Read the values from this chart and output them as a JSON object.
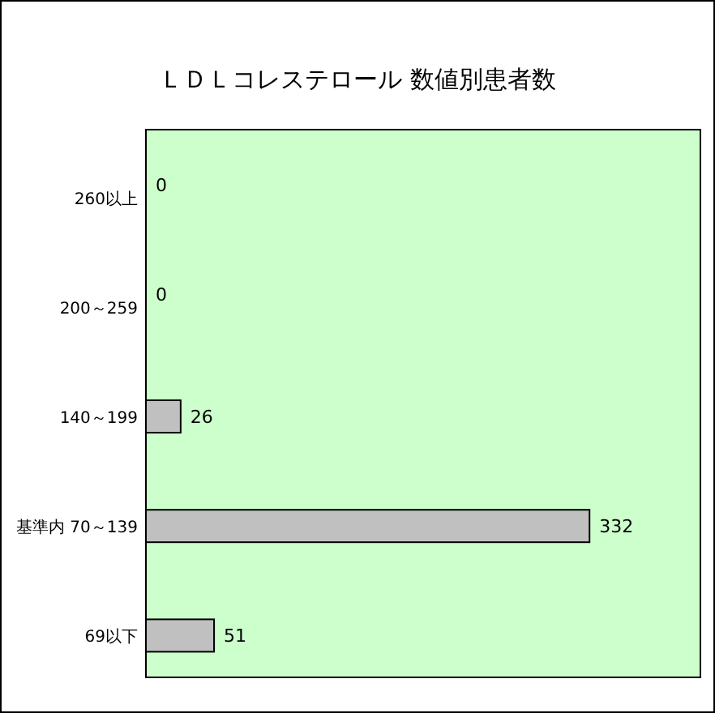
{
  "chart_data": {
    "type": "bar",
    "orientation": "horizontal",
    "title": "ＬＤＬコレステロール 数値別患者数",
    "categories": [
      "260以上",
      "200～259",
      "140～199",
      "基準内 70～139",
      "69以下"
    ],
    "values": [
      0,
      0,
      26,
      332,
      51
    ],
    "color": "#c0c0c0",
    "data_labels": true
  }
}
